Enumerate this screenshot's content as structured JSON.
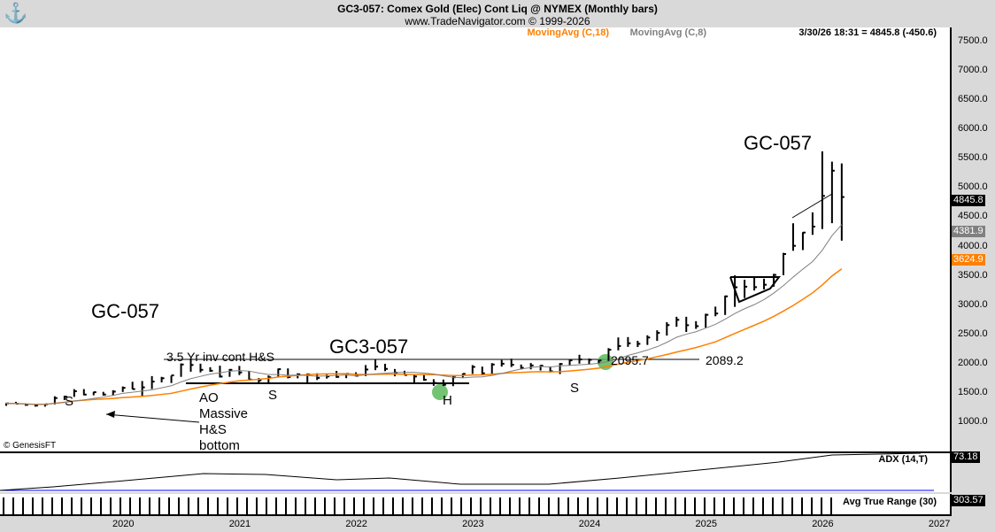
{
  "header": {
    "title": "GC3-057:  Comex Gold (Elec) Cont Liq @ NYMEX  (Monthly bars)",
    "subtitle": "www.TradeNavigator.com © 1999-2026"
  },
  "legend": {
    "ma18": "MovingAvg (C,18)",
    "ma8": "MovingAvg (C,8)",
    "last": "3/30/26 18:31 = 4845.8 (-450.6)"
  },
  "colors": {
    "ma18": "#ff7f00",
    "ma8": "#808080",
    "bars": "#000000",
    "adx": "#000000",
    "atr_ref": "#0000ff",
    "highlight": "#5cb85c"
  },
  "price_tags": {
    "last": "4845.8",
    "ma8": "4381.9",
    "ma18": "3624.9"
  },
  "indicators": {
    "adx_label": "ADX (14,T)",
    "adx_value": "73.18",
    "atr_label": "Avg True Range (30)",
    "atr_value": "303.57"
  },
  "copyright": "© GenesisFT",
  "annotations": {
    "gc_top": "GC-057",
    "gc_left": "GC-057",
    "gc3": "GC3-057",
    "hs": "3.5 Yr inv cont H&S",
    "ao": "AO",
    "massive": "Massive",
    "hs2": "H&S",
    "bottom": "bottom",
    "s1": "S",
    "s2": "S",
    "s3": "S",
    "h": "H",
    "lvl1": "2095.7",
    "lvl2": "2089.2"
  },
  "chart_data": {
    "type": "ohlc",
    "interval": "monthly",
    "start": "2019-01",
    "y_ticks": [
      1000,
      1500,
      2000,
      2500,
      3000,
      3500,
      4000,
      4500,
      5000,
      5500,
      6000,
      6500,
      7000,
      7500
    ],
    "x_ticks": [
      "2020",
      "2021",
      "2022",
      "2023",
      "2024",
      "2025",
      "2026",
      "2027"
    ],
    "ylim": [
      1000,
      7500
    ],
    "bars_hlc": [
      [
        1326,
        1280,
        1321
      ],
      [
        1349,
        1311,
        1316
      ],
      [
        1325,
        1281,
        1298
      ],
      [
        1300,
        1267,
        1285
      ],
      [
        1308,
        1266,
        1306
      ],
      [
        1443,
        1303,
        1413
      ],
      [
        1452,
        1380,
        1437
      ],
      [
        1565,
        1433,
        1529
      ],
      [
        1566,
        1460,
        1472
      ],
      [
        1519,
        1460,
        1513
      ],
      [
        1519,
        1455,
        1473
      ],
      [
        1547,
        1458,
        1523
      ],
      [
        1611,
        1517,
        1587
      ],
      [
        1691,
        1563,
        1566
      ],
      [
        1704,
        1450,
        1596
      ],
      [
        1788,
        1568,
        1694
      ],
      [
        1775,
        1680,
        1751
      ],
      [
        1796,
        1670,
        1800
      ],
      [
        2005,
        1775,
        1986
      ],
      [
        2089,
        1863,
        1978
      ],
      [
        2000,
        1851,
        1895
      ],
      [
        1940,
        1860,
        1879
      ],
      [
        1966,
        1764,
        1780
      ],
      [
        1909,
        1775,
        1895
      ],
      [
        1962,
        1805,
        1850
      ],
      [
        1875,
        1717,
        1729
      ],
      [
        1755,
        1673,
        1716
      ],
      [
        1798,
        1677,
        1768
      ],
      [
        1916,
        1765,
        1906
      ],
      [
        1919,
        1750,
        1771
      ],
      [
        1836,
        1750,
        1817
      ],
      [
        1834,
        1677,
        1818
      ],
      [
        1837,
        1721,
        1757
      ],
      [
        1813,
        1746,
        1783
      ],
      [
        1877,
        1759,
        1774
      ],
      [
        1831,
        1753,
        1828
      ],
      [
        1853,
        1780,
        1795
      ],
      [
        1976,
        1788,
        1900
      ],
      [
        2078,
        1890,
        1949
      ],
      [
        1998,
        1872,
        1911
      ],
      [
        1909,
        1785,
        1848
      ],
      [
        1879,
        1805,
        1807
      ],
      [
        1814,
        1678,
        1781
      ],
      [
        1824,
        1709,
        1726
      ],
      [
        1735,
        1622,
        1672
      ],
      [
        1729,
        1618,
        1640
      ],
      [
        1786,
        1616,
        1768
      ],
      [
        1833,
        1765,
        1826
      ],
      [
        1975,
        1825,
        1945
      ],
      [
        1950,
        1810,
        1836
      ],
      [
        2009,
        1810,
        1986
      ],
      [
        2063,
        1950,
        1999
      ],
      [
        2085,
        1943,
        1982
      ],
      [
        1985,
        1900,
        1929
      ],
      [
        2011,
        1903,
        1970
      ],
      [
        1978,
        1884,
        1966
      ],
      [
        1953,
        1848,
        1870
      ],
      [
        2010,
        1823,
        1995
      ],
      [
        2069,
        1965,
        2057
      ],
      [
        2152,
        2001,
        2072
      ],
      [
        2088,
        1984,
        2067
      ],
      [
        2065,
        1996,
        2054
      ],
      [
        2265,
        2038,
        2238
      ],
      [
        2448,
        2228,
        2302
      ],
      [
        2454,
        2287,
        2348
      ],
      [
        2390,
        2285,
        2339
      ],
      [
        2485,
        2320,
        2447
      ],
      [
        2570,
        2390,
        2527
      ],
      [
        2709,
        2480,
        2659
      ],
      [
        2801,
        2630,
        2749
      ],
      [
        2801,
        2541,
        2657
      ],
      [
        2726,
        2595,
        2641
      ],
      [
        2853,
        2614,
        2835
      ],
      [
        2974,
        2810,
        2857
      ],
      [
        3163,
        2832,
        3150
      ],
      [
        3509,
        2970,
        3305
      ],
      [
        3433,
        3121,
        3315
      ],
      [
        3476,
        3250,
        3307
      ],
      [
        3451,
        3268,
        3348
      ],
      [
        3534,
        3314,
        3516
      ],
      [
        3892,
        3512,
        3873
      ],
      [
        4398,
        3928,
        4013
      ],
      [
        4246,
        3940,
        4239
      ],
      [
        4584,
        4200,
        4341
      ],
      [
        5626,
        4300,
        4865
      ],
      [
        5450,
        4400,
        5296
      ],
      [
        5420,
        4100,
        4846
      ]
    ]
  }
}
